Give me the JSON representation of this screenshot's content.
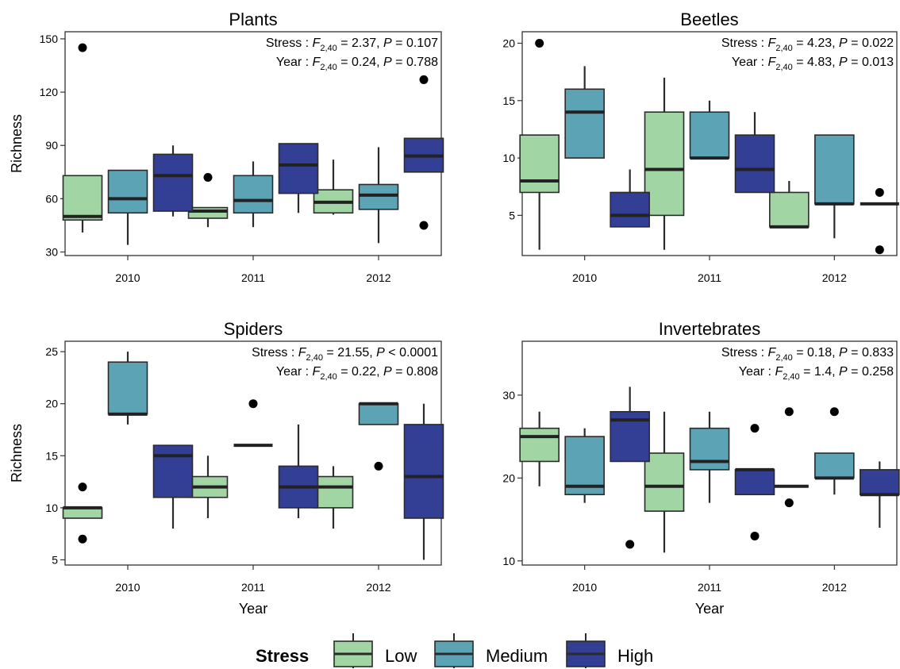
{
  "legend": {
    "title": "Stress",
    "items": [
      {
        "label": "Low",
        "color": "#a1d6a4"
      },
      {
        "label": "Medium",
        "color": "#5da3b6"
      },
      {
        "label": "High",
        "color": "#333f94"
      }
    ]
  },
  "chart_data": [
    {
      "type": "box",
      "title": "Plants",
      "xlabel": "",
      "ylabel": "Richness",
      "categories": [
        "2010",
        "2011",
        "2012"
      ],
      "ylim": [
        28,
        154
      ],
      "yticks": [
        30,
        60,
        90,
        120,
        150
      ],
      "stats": [
        {
          "label": "Stress",
          "df": "2,40",
          "F": "2.37",
          "P": "0.107",
          "op": "="
        },
        {
          "label": "Year",
          "df": "2,40",
          "F": "0.24",
          "P": "0.788",
          "op": "="
        }
      ],
      "series": [
        {
          "name": "Low",
          "boxes": [
            {
              "q1": 48,
              "med": 50,
              "q3": 73,
              "wlo": 41,
              "whi": 73,
              "out": [
                145
              ]
            },
            {
              "q1": 49,
              "med": 53,
              "q3": 55,
              "wlo": 44,
              "whi": 55,
              "out": [
                72
              ]
            },
            {
              "q1": 52,
              "med": 58,
              "q3": 65,
              "wlo": 51,
              "whi": 82,
              "out": []
            }
          ]
        },
        {
          "name": "Medium",
          "boxes": [
            {
              "q1": 52,
              "med": 60,
              "q3": 76,
              "wlo": 34,
              "whi": 76,
              "out": []
            },
            {
              "q1": 52,
              "med": 59,
              "q3": 73,
              "wlo": 44,
              "whi": 81,
              "out": []
            },
            {
              "q1": 54,
              "med": 62,
              "q3": 68,
              "wlo": 35,
              "whi": 89,
              "out": []
            }
          ]
        },
        {
          "name": "High",
          "boxes": [
            {
              "q1": 53,
              "med": 73,
              "q3": 85,
              "wlo": 50,
              "whi": 90,
              "out": []
            },
            {
              "q1": 63,
              "med": 79,
              "q3": 91,
              "wlo": 52,
              "whi": 91,
              "out": []
            },
            {
              "q1": 75,
              "med": 84,
              "q3": 94,
              "wlo": 75,
              "whi": 94,
              "out": [
                127,
                45
              ]
            }
          ]
        }
      ]
    },
    {
      "type": "box",
      "title": "Beetles",
      "xlabel": "",
      "ylabel": "",
      "categories": [
        "2010",
        "2011",
        "2012"
      ],
      "ylim": [
        1.5,
        21
      ],
      "yticks": [
        5,
        10,
        15,
        20
      ],
      "stats": [
        {
          "label": "Stress",
          "df": "2,40",
          "F": "4.23",
          "P": "0.022",
          "op": "="
        },
        {
          "label": "Year",
          "df": "2,40",
          "F": "4.83",
          "P": "0.013",
          "op": "="
        }
      ],
      "series": [
        {
          "name": "Low",
          "boxes": [
            {
              "q1": 7,
              "med": 8,
              "q3": 12,
              "wlo": 2,
              "whi": 12,
              "out": [
                20
              ]
            },
            {
              "q1": 5,
              "med": 9,
              "q3": 14,
              "wlo": 2,
              "whi": 17,
              "out": []
            },
            {
              "q1": 4,
              "med": 4,
              "q3": 7,
              "wlo": 4,
              "whi": 8,
              "out": []
            }
          ]
        },
        {
          "name": "Medium",
          "boxes": [
            {
              "q1": 10,
              "med": 14,
              "q3": 16,
              "wlo": 10,
              "whi": 18,
              "out": []
            },
            {
              "q1": 10,
              "med": 10,
              "q3": 14,
              "wlo": 10,
              "whi": 15,
              "out": []
            },
            {
              "q1": 6,
              "med": 6,
              "q3": 12,
              "wlo": 3,
              "whi": 12,
              "out": []
            }
          ]
        },
        {
          "name": "High",
          "boxes": [
            {
              "q1": 4,
              "med": 5,
              "q3": 7,
              "wlo": 4,
              "whi": 9,
              "out": []
            },
            {
              "q1": 7,
              "med": 9,
              "q3": 12,
              "wlo": 7,
              "whi": 14,
              "out": []
            },
            {
              "q1": 6,
              "med": 6,
              "q3": 6,
              "wlo": 6,
              "whi": 6,
              "out": [
                7,
                2
              ]
            }
          ]
        }
      ]
    },
    {
      "type": "box",
      "title": "Spiders",
      "xlabel": "Year",
      "ylabel": "Richness",
      "categories": [
        "2010",
        "2011",
        "2012"
      ],
      "ylim": [
        4.5,
        26
      ],
      "yticks": [
        5,
        10,
        15,
        20,
        25
      ],
      "stats": [
        {
          "label": "Stress",
          "df": "2,40",
          "F": "21.55",
          "P": "0.0001",
          "op": "<"
        },
        {
          "label": "Year",
          "df": "2,40",
          "F": "0.22",
          "P": "0.808",
          "op": "="
        }
      ],
      "series": [
        {
          "name": "Low",
          "boxes": [
            {
              "q1": 9,
              "med": 10,
              "q3": 10,
              "wlo": 9,
              "whi": 10,
              "out": [
                12,
                7
              ]
            },
            {
              "q1": 11,
              "med": 12,
              "q3": 13,
              "wlo": 9,
              "whi": 15,
              "out": []
            },
            {
              "q1": 10,
              "med": 12,
              "q3": 13,
              "wlo": 8,
              "whi": 14,
              "out": []
            }
          ]
        },
        {
          "name": "Medium",
          "boxes": [
            {
              "q1": 19,
              "med": 19,
              "q3": 24,
              "wlo": 18,
              "whi": 25,
              "out": []
            },
            {
              "q1": 16,
              "med": 16,
              "q3": 16,
              "wlo": 16,
              "whi": 16,
              "out": [
                20
              ]
            },
            {
              "q1": 18,
              "med": 20,
              "q3": 20,
              "wlo": 18,
              "whi": 20,
              "out": [
                14
              ]
            }
          ]
        },
        {
          "name": "High",
          "boxes": [
            {
              "q1": 11,
              "med": 15,
              "q3": 16,
              "wlo": 8,
              "whi": 16,
              "out": []
            },
            {
              "q1": 10,
              "med": 12,
              "q3": 14,
              "wlo": 9,
              "whi": 18,
              "out": []
            },
            {
              "q1": 9,
              "med": 13,
              "q3": 18,
              "wlo": 5,
              "whi": 20,
              "out": []
            }
          ]
        }
      ]
    },
    {
      "type": "box",
      "title": "Invertebrates",
      "xlabel": "Year",
      "ylabel": "",
      "categories": [
        "2010",
        "2011",
        "2012"
      ],
      "ylim": [
        9.5,
        36.5
      ],
      "yticks": [
        10,
        20,
        30
      ],
      "stats": [
        {
          "label": "Stress",
          "df": "2,40",
          "F": "0.18",
          "P": "0.833",
          "op": "="
        },
        {
          "label": "Year",
          "df": "2,40",
          "F": "1.4",
          "P": "0.258",
          "op": "="
        }
      ],
      "series": [
        {
          "name": "Low",
          "boxes": [
            {
              "q1": 22,
              "med": 25,
              "q3": 26,
              "wlo": 19,
              "whi": 28,
              "out": []
            },
            {
              "q1": 16,
              "med": 19,
              "q3": 23,
              "wlo": 11,
              "whi": 28,
              "out": []
            },
            {
              "q1": 19,
              "med": 19,
              "q3": 19,
              "wlo": 19,
              "whi": 19,
              "out": [
                28,
                17
              ]
            }
          ]
        },
        {
          "name": "Medium",
          "boxes": [
            {
              "q1": 18,
              "med": 19,
              "q3": 25,
              "wlo": 17,
              "whi": 26,
              "out": []
            },
            {
              "q1": 21,
              "med": 22,
              "q3": 26,
              "wlo": 17,
              "whi": 28,
              "out": []
            },
            {
              "q1": 20,
              "med": 20,
              "q3": 23,
              "wlo": 18,
              "whi": 23,
              "out": [
                28
              ]
            }
          ]
        },
        {
          "name": "High",
          "boxes": [
            {
              "q1": 22,
              "med": 27,
              "q3": 28,
              "wlo": 22,
              "whi": 31,
              "out": [
                12
              ]
            },
            {
              "q1": 18,
              "med": 21,
              "q3": 21,
              "wlo": 18,
              "whi": 21,
              "out": [
                26,
                13
              ]
            },
            {
              "q1": 18,
              "med": 18,
              "q3": 21,
              "wlo": 14,
              "whi": 22,
              "out": []
            }
          ]
        }
      ]
    }
  ]
}
